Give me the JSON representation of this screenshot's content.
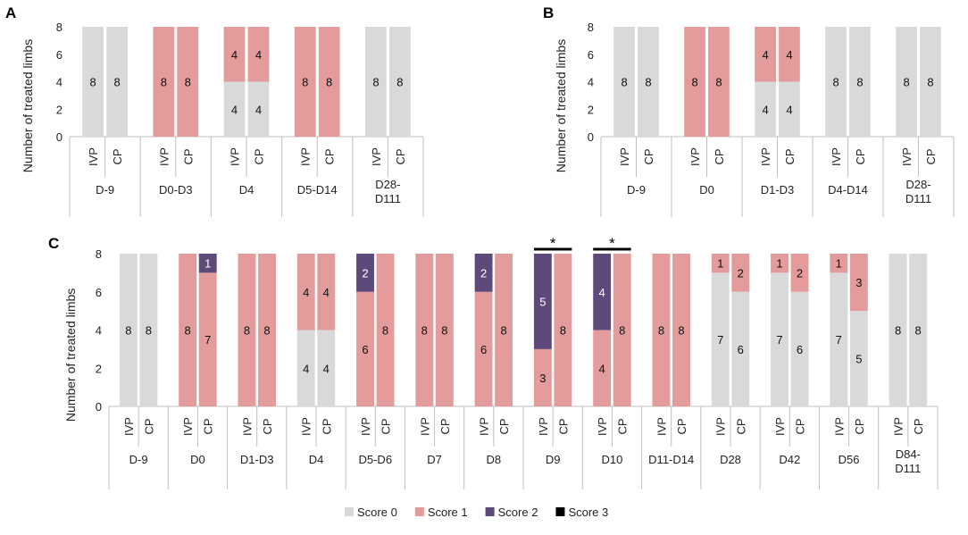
{
  "colors": {
    "score0": "#d9d9d9",
    "score1": "#e39b9b",
    "score2": "#5e4a7a",
    "score3": "#000000"
  },
  "y_axis_label": "Number of treated limbs",
  "legend": {
    "position": "bottom-center",
    "entries": [
      {
        "label": "Score 0",
        "color": "#d9d9d9"
      },
      {
        "label": "Score 1",
        "color": "#e39b9b"
      },
      {
        "label": "Score 2",
        "color": "#5e4a7a"
      },
      {
        "label": "Score 3",
        "color": "#000000"
      }
    ]
  },
  "chart_data": [
    {
      "panel": "A",
      "type": "bar",
      "stacked": true,
      "ylabel": "Number of treated limbs",
      "ylim": [
        0,
        8
      ],
      "yticks": [
        0,
        2,
        4,
        6,
        8
      ],
      "bar_labels": [
        "IVP",
        "CP"
      ],
      "groups": [
        {
          "label": "D-9",
          "bars": [
            {
              "label": "IVP",
              "segments": [
                8,
                0,
                0,
                0
              ]
            },
            {
              "label": "CP",
              "segments": [
                8,
                0,
                0,
                0
              ]
            }
          ]
        },
        {
          "label": "D0-D3",
          "bars": [
            {
              "label": "IVP",
              "segments": [
                0,
                8,
                0,
                0
              ]
            },
            {
              "label": "CP",
              "segments": [
                0,
                8,
                0,
                0
              ]
            }
          ]
        },
        {
          "label": "D4",
          "bars": [
            {
              "label": "IVP",
              "segments": [
                4,
                4,
                0,
                0
              ]
            },
            {
              "label": "CP",
              "segments": [
                4,
                4,
                0,
                0
              ]
            }
          ]
        },
        {
          "label": "D5-D14",
          "bars": [
            {
              "label": "IVP",
              "segments": [
                0,
                8,
                0,
                0
              ]
            },
            {
              "label": "CP",
              "segments": [
                0,
                8,
                0,
                0
              ]
            }
          ]
        },
        {
          "label": "D28-\nD111",
          "bars": [
            {
              "label": "IVP",
              "segments": [
                8,
                0,
                0,
                0
              ]
            },
            {
              "label": "CP",
              "segments": [
                8,
                0,
                0,
                0
              ]
            }
          ]
        }
      ]
    },
    {
      "panel": "B",
      "type": "bar",
      "stacked": true,
      "ylabel": "Number of treated limbs",
      "ylim": [
        0,
        8
      ],
      "yticks": [
        0,
        2,
        4,
        6,
        8
      ],
      "bar_labels": [
        "IVP",
        "CP"
      ],
      "groups": [
        {
          "label": "D-9",
          "bars": [
            {
              "label": "IVP",
              "segments": [
                8,
                0,
                0,
                0
              ]
            },
            {
              "label": "CP",
              "segments": [
                8,
                0,
                0,
                0
              ]
            }
          ]
        },
        {
          "label": "D0",
          "bars": [
            {
              "label": "IVP",
              "segments": [
                0,
                8,
                0,
                0
              ]
            },
            {
              "label": "CP",
              "segments": [
                0,
                8,
                0,
                0
              ]
            }
          ]
        },
        {
          "label": "D1-D3",
          "bars": [
            {
              "label": "IVP",
              "segments": [
                4,
                4,
                0,
                0
              ]
            },
            {
              "label": "CP",
              "segments": [
                4,
                4,
                0,
                0
              ]
            }
          ]
        },
        {
          "label": "D4-D14",
          "bars": [
            {
              "label": "IVP",
              "segments": [
                8,
                0,
                0,
                0
              ]
            },
            {
              "label": "CP",
              "segments": [
                8,
                0,
                0,
                0
              ]
            }
          ]
        },
        {
          "label": "D28-\nD111",
          "bars": [
            {
              "label": "IVP",
              "segments": [
                8,
                0,
                0,
                0
              ]
            },
            {
              "label": "CP",
              "segments": [
                8,
                0,
                0,
                0
              ]
            }
          ]
        }
      ]
    },
    {
      "panel": "C",
      "type": "bar",
      "stacked": true,
      "ylabel": "Number of treated limbs",
      "ylim": [
        0,
        8
      ],
      "yticks": [
        0,
        2,
        4,
        6,
        8
      ],
      "bar_labels": [
        "IVP",
        "CP"
      ],
      "groups": [
        {
          "label": "D-9",
          "bars": [
            {
              "label": "IVP",
              "segments": [
                8,
                0,
                0,
                0
              ]
            },
            {
              "label": "CP",
              "segments": [
                8,
                0,
                0,
                0
              ]
            }
          ]
        },
        {
          "label": "D0",
          "bars": [
            {
              "label": "IVP",
              "segments": [
                0,
                8,
                0,
                0
              ]
            },
            {
              "label": "CP",
              "segments": [
                0,
                7,
                1,
                0
              ]
            }
          ]
        },
        {
          "label": "D1-D3",
          "bars": [
            {
              "label": "IVP",
              "segments": [
                0,
                8,
                0,
                0
              ]
            },
            {
              "label": "CP",
              "segments": [
                0,
                8,
                0,
                0
              ]
            }
          ]
        },
        {
          "label": "D4",
          "bars": [
            {
              "label": "IVP",
              "segments": [
                4,
                4,
                0,
                0
              ]
            },
            {
              "label": "CP",
              "segments": [
                4,
                4,
                0,
                0
              ]
            }
          ]
        },
        {
          "label": "D5-D6",
          "bars": [
            {
              "label": "IVP",
              "segments": [
                0,
                6,
                2,
                0
              ]
            },
            {
              "label": "CP",
              "segments": [
                0,
                8,
                0,
                0
              ]
            }
          ]
        },
        {
          "label": "D7",
          "bars": [
            {
              "label": "IVP",
              "segments": [
                0,
                8,
                0,
                0
              ]
            },
            {
              "label": "CP",
              "segments": [
                0,
                8,
                0,
                0
              ]
            }
          ]
        },
        {
          "label": "D8",
          "bars": [
            {
              "label": "IVP",
              "segments": [
                0,
                6,
                2,
                0
              ]
            },
            {
              "label": "CP",
              "segments": [
                0,
                8,
                0,
                0
              ]
            }
          ]
        },
        {
          "label": "D9",
          "significance": "*",
          "bars": [
            {
              "label": "IVP",
              "segments": [
                0,
                3,
                5,
                0
              ]
            },
            {
              "label": "CP",
              "segments": [
                0,
                8,
                0,
                0
              ]
            }
          ]
        },
        {
          "label": "D10",
          "significance": "*",
          "bars": [
            {
              "label": "IVP",
              "segments": [
                0,
                4,
                4,
                0
              ]
            },
            {
              "label": "CP",
              "segments": [
                0,
                8,
                0,
                0
              ]
            }
          ]
        },
        {
          "label": "D11-D14",
          "bars": [
            {
              "label": "IVP",
              "segments": [
                0,
                8,
                0,
                0
              ]
            },
            {
              "label": "CP",
              "segments": [
                0,
                8,
                0,
                0
              ]
            }
          ]
        },
        {
          "label": "D28",
          "bars": [
            {
              "label": "IVP",
              "segments": [
                7,
                1,
                0,
                0
              ]
            },
            {
              "label": "CP",
              "segments": [
                6,
                2,
                0,
                0
              ]
            }
          ]
        },
        {
          "label": "D42",
          "bars": [
            {
              "label": "IVP",
              "segments": [
                7,
                1,
                0,
                0
              ]
            },
            {
              "label": "CP",
              "segments": [
                6,
                2,
                0,
                0
              ]
            }
          ]
        },
        {
          "label": "D56",
          "bars": [
            {
              "label": "IVP",
              "segments": [
                7,
                1,
                0,
                0
              ]
            },
            {
              "label": "CP",
              "segments": [
                5,
                3,
                0,
                0
              ]
            }
          ]
        },
        {
          "label": "D84-\nD111",
          "bars": [
            {
              "label": "IVP",
              "segments": [
                8,
                0,
                0,
                0
              ]
            },
            {
              "label": "CP",
              "segments": [
                8,
                0,
                0,
                0
              ]
            }
          ]
        }
      ]
    }
  ]
}
